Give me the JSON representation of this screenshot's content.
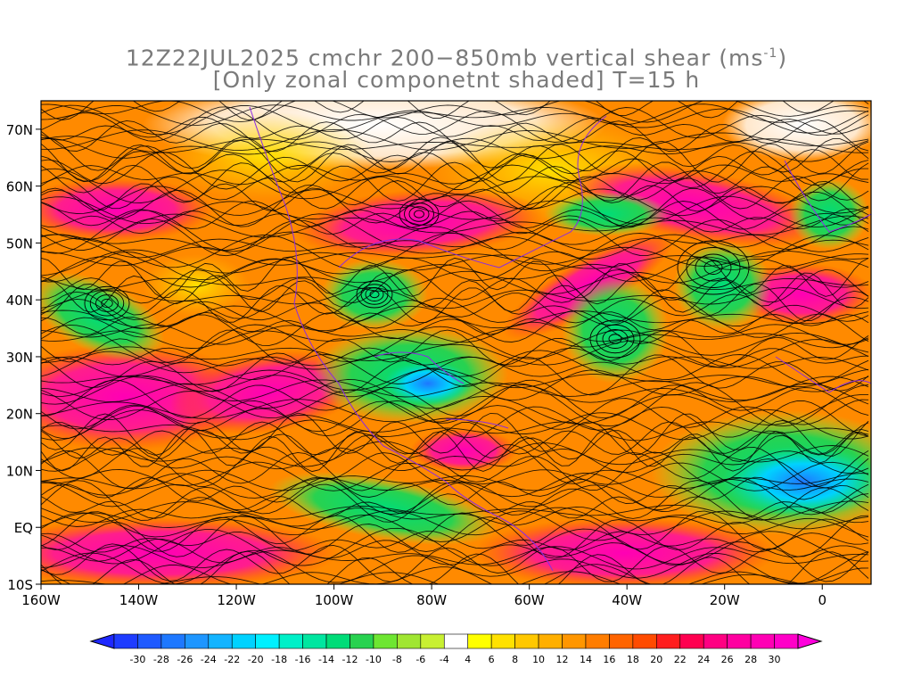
{
  "title": {
    "line1_main": "12Z22JUL2025 cmchr 200−850mb vertical shear (ms",
    "line1_sup": "-1",
    "line1_end": ")",
    "line2": "[Only zonal componetnt shaded] T=15 h"
  },
  "map": {
    "lon_range": [
      -160,
      10
    ],
    "lat_range": [
      -10,
      75
    ],
    "lat_ticks": [
      {
        "value": 70,
        "label": "70N"
      },
      {
        "value": 60,
        "label": "60N"
      },
      {
        "value": 50,
        "label": "50N"
      },
      {
        "value": 40,
        "label": "40N"
      },
      {
        "value": 30,
        "label": "30N"
      },
      {
        "value": 20,
        "label": "20N"
      },
      {
        "value": 10,
        "label": "10N"
      },
      {
        "value": 0,
        "label": "EQ"
      },
      {
        "value": -10,
        "label": "10S"
      }
    ],
    "lon_ticks": [
      {
        "value": -160,
        "label": "160W"
      },
      {
        "value": -140,
        "label": "140W"
      },
      {
        "value": -120,
        "label": "120W"
      },
      {
        "value": -100,
        "label": "100W"
      },
      {
        "value": -80,
        "label": "80W"
      },
      {
        "value": -60,
        "label": "60W"
      },
      {
        "value": -40,
        "label": "40W"
      },
      {
        "value": -20,
        "label": "20W"
      },
      {
        "value": 0,
        "label": "0"
      }
    ],
    "streamline_color": "#000000",
    "coastline_color": "#8a2be2"
  },
  "colorbar": {
    "labels": [
      "-30",
      "-28",
      "-26",
      "-24",
      "-22",
      "-20",
      "-18",
      "-16",
      "-14",
      "-12",
      "-10",
      "-8",
      "-6",
      "-4",
      "4",
      "6",
      "8",
      "10",
      "12",
      "14",
      "16",
      "18",
      "20",
      "22",
      "24",
      "26",
      "28",
      "30"
    ],
    "colors": [
      "#1e3cff",
      "#1f5aff",
      "#1e78ff",
      "#1e96ff",
      "#14b4ff",
      "#00d2ff",
      "#00f0ff",
      "#00f0c8",
      "#00e6a0",
      "#00dc78",
      "#28d250",
      "#6ee632",
      "#a0e632",
      "#c8f032",
      "#ffffff",
      "#ffff00",
      "#ffe100",
      "#ffc800",
      "#ffaf00",
      "#ff9600",
      "#ff7d00",
      "#ff6400",
      "#ff4b00",
      "#ff1e1e",
      "#ff0050",
      "#ff0082",
      "#ff00a0",
      "#ff00b4",
      "#ff00c8"
    ]
  }
}
